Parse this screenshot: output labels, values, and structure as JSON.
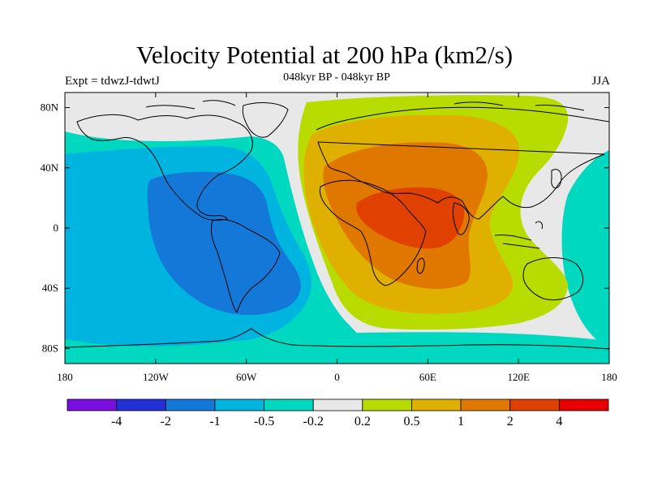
{
  "header": {
    "title": "Velocity Potential at 200 hPa (km2/s)",
    "subtitle_center": "048kyr BP - 048kyr BP",
    "subtitle_left": "Expt = tdwzJ-tdwtJ",
    "subtitle_right": "JJA"
  },
  "chart_data": {
    "type": "heatmap",
    "title": "Velocity Potential at 200 hPa (km2/s)",
    "x_ticks": [
      "180",
      "120W",
      "60W",
      "0",
      "60E",
      "120E",
      "180"
    ],
    "y_ticks": [
      "80N",
      "40N",
      "0",
      "40S",
      "80S"
    ],
    "xlim": [
      -180,
      180
    ],
    "ylim": [
      -90,
      90
    ],
    "colorbar": {
      "labels": [
        "-4",
        "-2",
        "-1",
        "-0.5",
        "-0.2",
        "0.2",
        "0.5",
        "1",
        "2",
        "4"
      ],
      "colors": [
        "#7a0de0",
        "#2330d8",
        "#1478d8",
        "#00b4e0",
        "#00d8c0",
        "#e8e8e8",
        "#b8dc00",
        "#e0b000",
        "#e07800",
        "#e04000",
        "#e80000"
      ]
    },
    "fields": {
      "outer_positive_color": "#b8dc00",
      "mid_positive_color": "#e0b000",
      "inner_positive_color": "#e07800",
      "core_positive_color": "#e04000",
      "outer_negative_color": "#00d8c0",
      "mid_negative_color": "#00b4e0",
      "core_negative_color": "#1478d8",
      "neutral_color": "#e8e8e8"
    }
  }
}
